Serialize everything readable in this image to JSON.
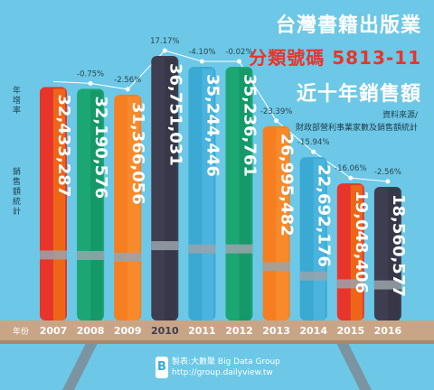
{
  "header": {
    "title": "台灣書籍出版業",
    "subtitle": "分類號碼 5813-11",
    "subtitle2": "近十年銷售額"
  },
  "source": {
    "line1": "資料來源/",
    "line2": "財政部營利事業家數及銷售額統計"
  },
  "side_labels": {
    "growth": "年增率",
    "sales": "銷售額統計",
    "year": "年份"
  },
  "credit": {
    "line1": "製表:大數聚 Big Data Group",
    "line2": "http://group.dailyview.tw",
    "logo": "B"
  },
  "colors": {
    "background": "#6cc8e6",
    "table": "#c9a587",
    "tableLegs": "#7b94a1"
  },
  "chart_data": {
    "type": "bar",
    "categories": [
      "2007",
      "2008",
      "2009",
      "2010",
      "2011",
      "2012",
      "2013",
      "2014",
      "2015",
      "2016"
    ],
    "values": [
      32433287,
      32190576,
      31366056,
      36751031,
      35244446,
      35236761,
      26995482,
      22692176,
      19048406,
      18560577
    ],
    "value_labels": [
      "32,433,287",
      "32,190,576",
      "31,366,056",
      "36,751,031",
      "35,244,446",
      "35,236,761",
      "26,995,482",
      "22,692,176",
      "19,048,406",
      "18,560,577"
    ],
    "growth_labels": [
      "",
      "-0.75%",
      "-2.56%",
      "17.17%",
      "-4.10%",
      "-0.02%",
      "-23.39%",
      "-15.94%",
      "-16.06%",
      "-2.56%"
    ],
    "growth_values": [
      null,
      -0.75,
      -2.56,
      17.17,
      -4.1,
      -0.02,
      -23.39,
      -15.94,
      -16.06,
      -2.56
    ],
    "bar_colors": [
      "#e8352b",
      "#1ca673",
      "#f57f20",
      "#3e3e50",
      "#3aa9d3",
      "#1ca673",
      "#f57f20",
      "#3aa9d3",
      "#e8352b",
      "#3e3e50"
    ],
    "bar_accent_colors": [
      "#f5a200",
      "#0e8a5e",
      "#ff9a3c",
      "#2f2f3e",
      "#5fc2ea",
      "#0e8a5e",
      "#ff9a3c",
      "#5fc2ea",
      "#f5a200",
      "#2f2f3e"
    ],
    "title": "台灣書籍出版業 分類號碼 5813-11 近十年銷售額",
    "xlabel": "年份",
    "ylabel": "銷售額統計"
  }
}
